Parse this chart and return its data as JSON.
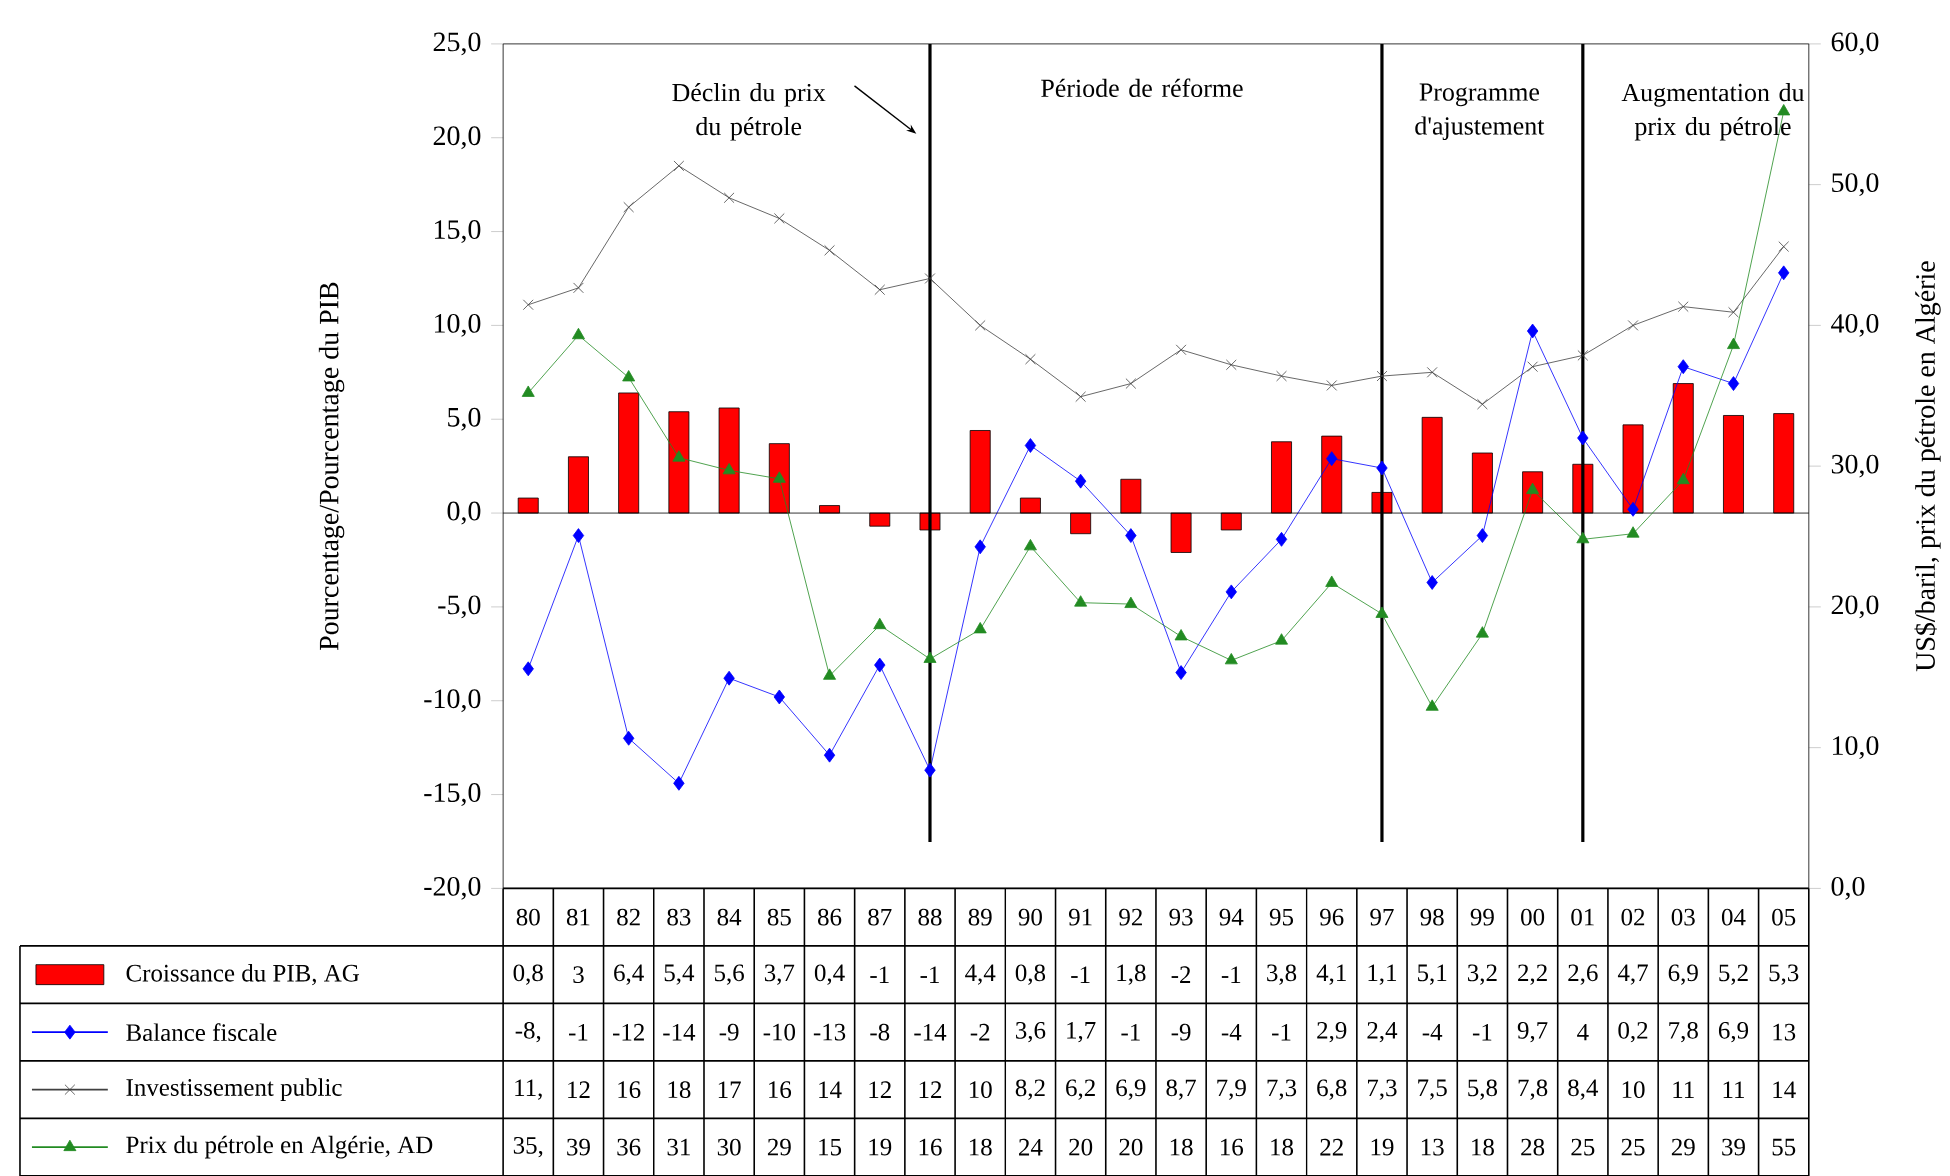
{
  "chart_data": {
    "type": "line",
    "ylabel": "Pourcentage/Pourcentage du PIB",
    "y2label": "US$/baril, prix du pétrole en Algérie",
    "categories": [
      "80",
      "81",
      "82",
      "83",
      "84",
      "85",
      "86",
      "87",
      "88",
      "89",
      "90",
      "91",
      "92",
      "93",
      "94",
      "95",
      "96",
      "97",
      "98",
      "99",
      "00",
      "01",
      "02",
      "03",
      "04",
      "05"
    ],
    "series": [
      {
        "name": "Croissance du PIB, AG",
        "type": "bar",
        "color": "#ff0000",
        "values": [
          0.8,
          3,
          6.4,
          5.4,
          5.6,
          3.7,
          0.4,
          -0.7,
          -0.9,
          4.4,
          0.8,
          -1.1,
          1.8,
          -2.1,
          -0.9,
          3.8,
          4.1,
          1.1,
          5.1,
          3.2,
          2.2,
          2.6,
          4.7,
          6.9,
          5.2,
          5.3
        ],
        "value_labels": [
          "0,8",
          "3",
          "6,4",
          "5,4",
          "5,6",
          "3,7",
          "0,4",
          "-1",
          "-1",
          "4,4",
          "0,8",
          "-1",
          "1,8",
          "-2",
          "-1",
          "3,8",
          "4,1",
          "1,1",
          "5,1",
          "3,2",
          "2,2",
          "2,6",
          "4,7",
          "6,9",
          "5,2",
          "5,3"
        ]
      },
      {
        "name": "Balance fiscale",
        "marker": "diamond",
        "color": "#0000ff",
        "values": [
          -8.3,
          -1.2,
          -12,
          -14.4,
          -8.8,
          -9.8,
          -12.9,
          -8.1,
          -13.7,
          -1.8,
          3.6,
          1.7,
          -1.2,
          -8.5,
          -4.2,
          -1.4,
          2.9,
          2.4,
          -3.7,
          -1.2,
          9.7,
          4,
          0.2,
          7.8,
          6.9,
          12.8
        ],
        "value_labels": [
          "-8,",
          "-1",
          "-12",
          "-14",
          "-9",
          "-10",
          "-13",
          "-8",
          "-14",
          "-2",
          "3,6",
          "1,7",
          "-1",
          "-9",
          "-4",
          "-1",
          "2,9",
          "2,4",
          "-4",
          "-1",
          "9,7",
          "4",
          "0,2",
          "7,8",
          "6,9",
          "13"
        ]
      },
      {
        "name": "Investissement public",
        "marker": "cross",
        "color": "#404040",
        "values": [
          11.1,
          12,
          16.3,
          18.5,
          16.8,
          15.7,
          14,
          11.9,
          12.5,
          10,
          8.2,
          6.2,
          6.9,
          8.7,
          7.9,
          7.3,
          6.8,
          7.3,
          7.5,
          5.8,
          7.8,
          8.4,
          10,
          11,
          10.7,
          14.2
        ],
        "value_labels": [
          "11,",
          "12",
          "16",
          "18",
          "17",
          "16",
          "14",
          "12",
          "12",
          "10",
          "8,2",
          "6,2",
          "6,9",
          "8,7",
          "7,9",
          "7,3",
          "6,8",
          "7,3",
          "7,5",
          "5,8",
          "7,8",
          "8,4",
          "10",
          "11",
          "11",
          "14"
        ]
      },
      {
        "name": "Prix du pétrole en Algérie, AD",
        "marker": "triangle",
        "axis": "y2",
        "color": "#228b22",
        "values": [
          35.2,
          39.3,
          36.3,
          30.6,
          29.7,
          29.1,
          15.1,
          18.7,
          16.3,
          18.4,
          24.3,
          20.3,
          20.2,
          17.9,
          16.2,
          17.6,
          21.7,
          19.5,
          12.9,
          18.1,
          28.3,
          24.8,
          25.2,
          29,
          38.6,
          55.2
        ],
        "value_labels": [
          "35,",
          "39",
          "36",
          "31",
          "30",
          "29",
          "15",
          "19",
          "16",
          "18",
          "24",
          "20",
          "20",
          "18",
          "16",
          "18",
          "22",
          "19",
          "13",
          "18",
          "28",
          "25",
          "25",
          "29",
          "39",
          "55"
        ]
      }
    ],
    "ylim": [
      -20,
      25
    ],
    "yticks": [
      {
        "value": -20,
        "label": "-20,0"
      },
      {
        "value": -15,
        "label": "-15,0"
      },
      {
        "value": -10,
        "label": "-10,0"
      },
      {
        "value": -5,
        "label": "-5,0"
      },
      {
        "value": 0,
        "label": "0,0"
      },
      {
        "value": 5,
        "label": "5,0"
      },
      {
        "value": 10,
        "label": "10,0"
      },
      {
        "value": 15,
        "label": "15,0"
      },
      {
        "value": 20,
        "label": "20,0"
      },
      {
        "value": 25,
        "label": "25,0"
      }
    ],
    "y2lim": [
      0,
      60
    ],
    "y2ticks": [
      {
        "value": 0,
        "label": "0,0"
      },
      {
        "value": 10,
        "label": "10,0"
      },
      {
        "value": 20,
        "label": "20,0"
      },
      {
        "value": 30,
        "label": "30,0"
      },
      {
        "value": 40,
        "label": "40,0"
      },
      {
        "value": 50,
        "label": "50,0"
      },
      {
        "value": 60,
        "label": "60,0"
      }
    ],
    "ref_lines": [
      {
        "axis": "x",
        "value": "88"
      },
      {
        "axis": "x",
        "value": "97"
      },
      {
        "axis": "x",
        "value": "01"
      }
    ],
    "annotations": [
      "Déclin du prix du pétrole",
      "Période de réforme",
      "Programme d'ajustement",
      "Augmentation du prix du pétrole"
    ],
    "legend": "bottom"
  }
}
